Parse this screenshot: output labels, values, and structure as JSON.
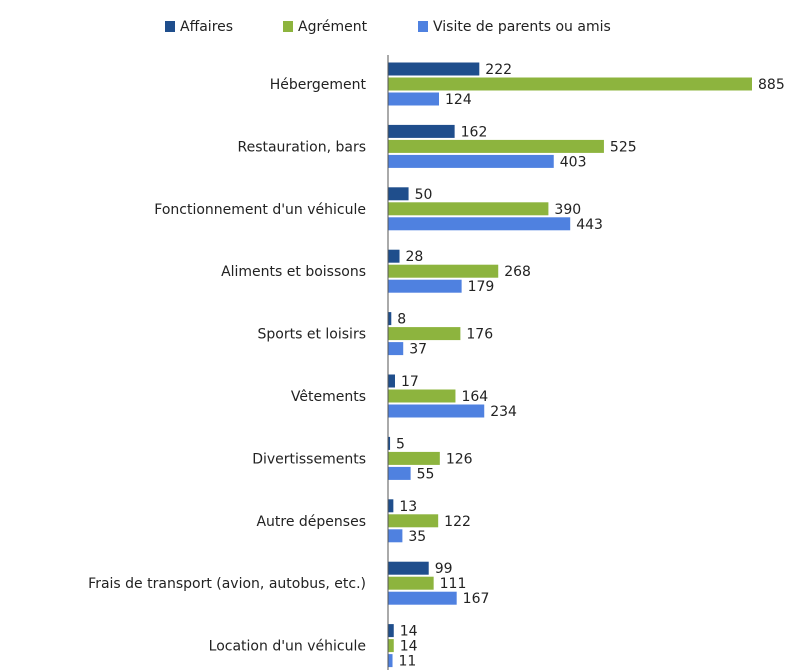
{
  "chart_data": {
    "type": "bar",
    "orientation": "horizontal",
    "categories": [
      "Hébergement",
      "Restauration, bars",
      "Fonctionnement d'un véhicule",
      "Aliments et boissons",
      "Sports et loisirs",
      "Vêtements",
      "Divertissements",
      "Autre dépenses",
      "Frais de transport (avion, autobus, etc.)",
      "Location d'un véhicule"
    ],
    "series": [
      {
        "name": "Affaires",
        "color": "#1f4e8c",
        "values": [
          222,
          162,
          50,
          28,
          8,
          17,
          5,
          13,
          99,
          14
        ]
      },
      {
        "name": "Agrément",
        "color": "#8db43e",
        "values": [
          885,
          525,
          390,
          268,
          176,
          164,
          126,
          122,
          111,
          14
        ]
      },
      {
        "name": "Visite de parents ou amis",
        "color": "#4f81e0",
        "values": [
          124,
          403,
          443,
          179,
          37,
          234,
          55,
          35,
          167,
          11
        ]
      }
    ],
    "legend": "top"
  }
}
